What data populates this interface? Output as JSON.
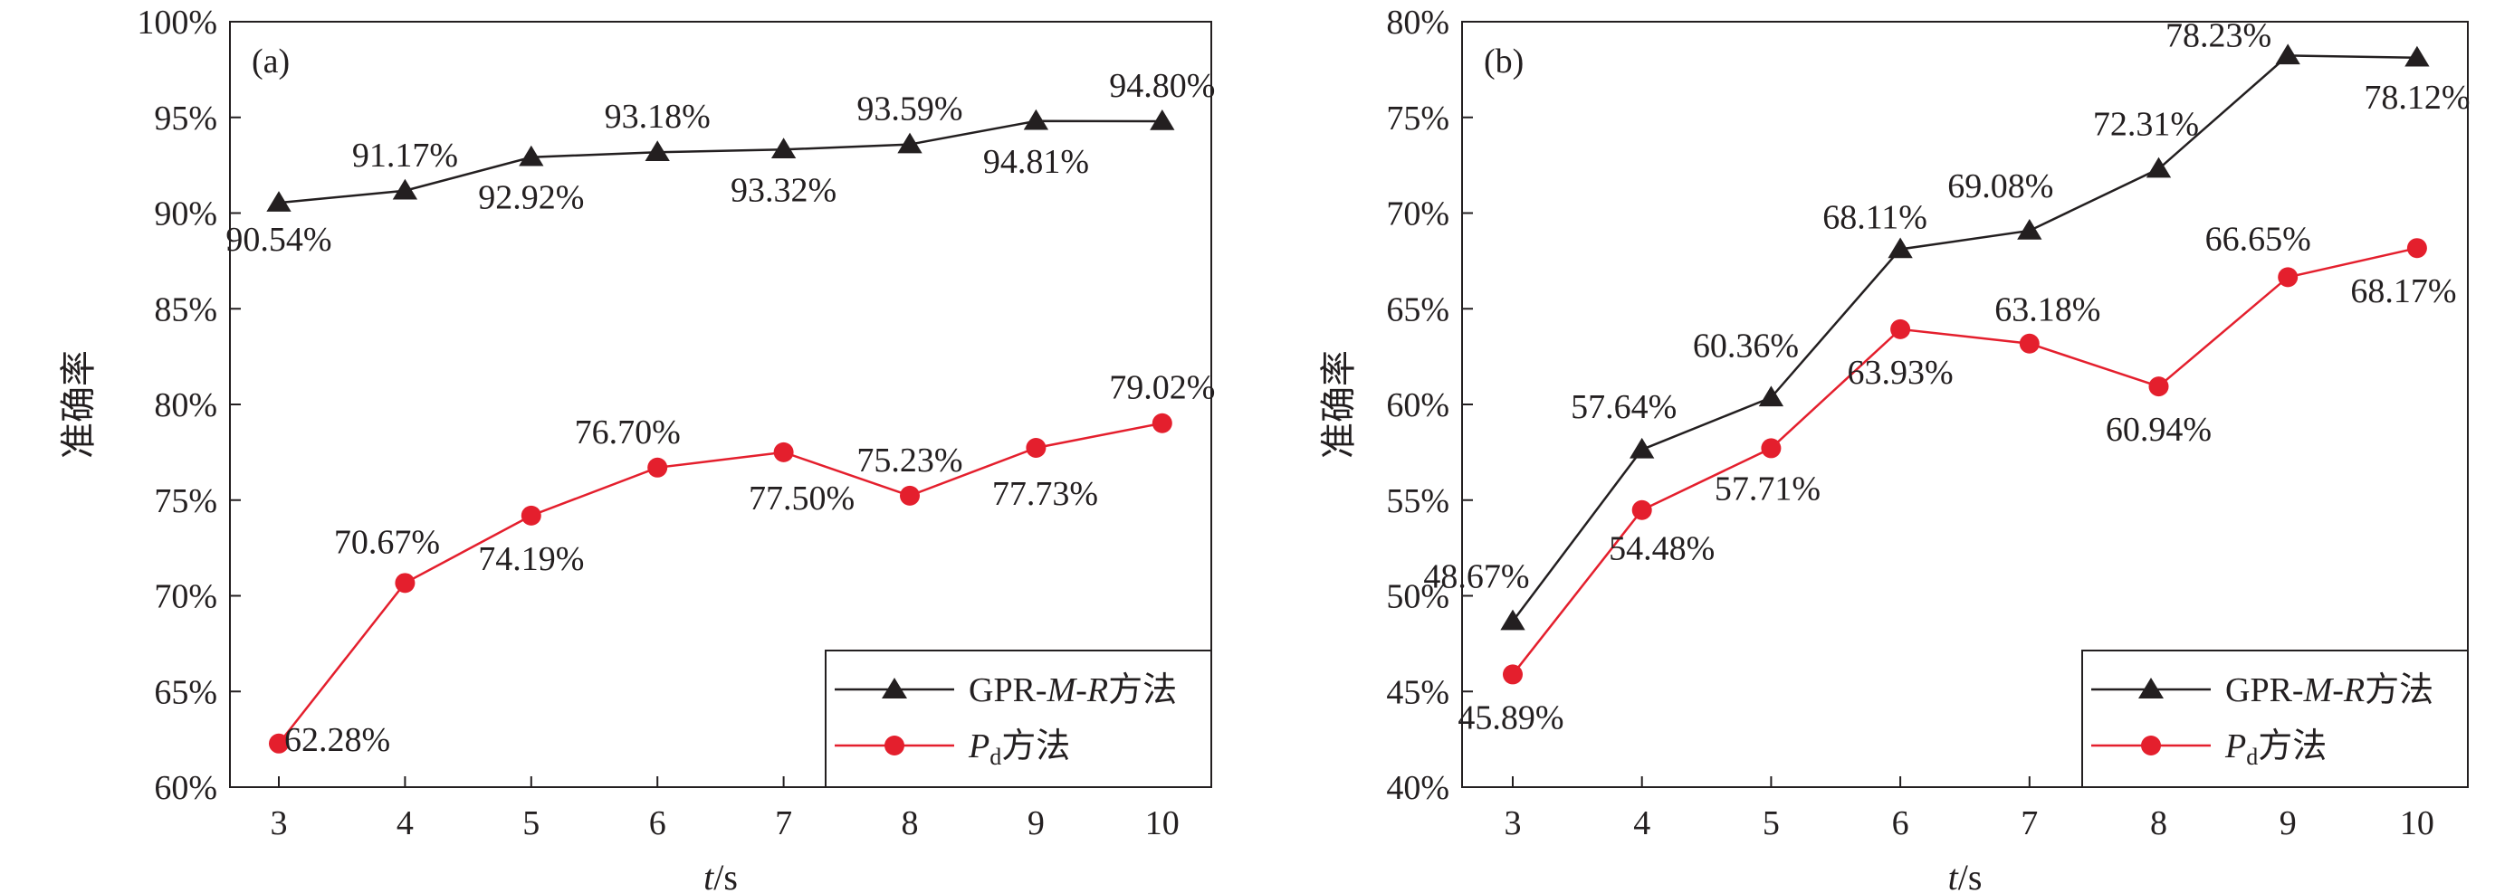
{
  "chart_data": [
    {
      "type": "line",
      "panel_label": "(a)",
      "xlabel_italic": "t",
      "xlabel_unit": "/s",
      "ylabel": "准确率",
      "categories": [
        3,
        4,
        5,
        6,
        7,
        8,
        9,
        10
      ],
      "ylim": [
        60,
        100
      ],
      "yticks": [
        "60%",
        "65%",
        "70%",
        "75%",
        "80%",
        "85%",
        "90%",
        "95%",
        "100%"
      ],
      "grid": false,
      "legend_position": "bottom-right",
      "series": [
        {
          "name": "GPR-M-R方法",
          "marker": "triangle",
          "color": "#231f20",
          "values": [
            90.54,
            91.17,
            92.92,
            93.18,
            93.32,
            93.59,
            94.81,
            94.8
          ],
          "labels": [
            "90.54%",
            "91.17%",
            "92.92%",
            "93.18%",
            "93.32%",
            "93.59%",
            "94.81%",
            "94.80%"
          ]
        },
        {
          "name": "Pd方法",
          "marker": "circle",
          "color": "#e41f2d",
          "values": [
            62.28,
            70.67,
            74.19,
            76.7,
            77.5,
            75.23,
            77.73,
            79.02
          ],
          "labels": [
            "62.28%",
            "70.67%",
            "74.19%",
            "76.70%",
            "77.50%",
            "75.23%",
            "77.73%",
            "79.02%"
          ]
        }
      ]
    },
    {
      "type": "line",
      "panel_label": "(b)",
      "xlabel_italic": "t",
      "xlabel_unit": "/s",
      "ylabel": "准确率",
      "categories": [
        3,
        4,
        5,
        6,
        7,
        8,
        9,
        10
      ],
      "ylim": [
        40,
        80
      ],
      "yticks": [
        "40%",
        "45%",
        "50%",
        "55%",
        "60%",
        "65%",
        "70%",
        "75%",
        "80%"
      ],
      "grid": false,
      "legend_position": "bottom-right",
      "series": [
        {
          "name": "GPR-M-R方法",
          "marker": "triangle",
          "color": "#231f20",
          "values": [
            48.67,
            57.64,
            60.36,
            68.11,
            69.08,
            72.31,
            78.23,
            78.12
          ],
          "labels": [
            "48.67%",
            "57.64%",
            "60.36%",
            "68.11%",
            "69.08%",
            "72.31%",
            "78.23%",
            "78.12%"
          ]
        },
        {
          "name": "Pd方法",
          "marker": "circle",
          "color": "#e41f2d",
          "values": [
            45.89,
            54.48,
            57.71,
            63.93,
            63.18,
            60.94,
            66.65,
            68.17
          ],
          "labels": [
            "45.89%",
            "54.48%",
            "57.71%",
            "63.93%",
            "63.18%",
            "60.94%",
            "66.65%",
            "68.17%"
          ]
        }
      ]
    }
  ],
  "legend": {
    "gpr_prefix": "GPR-",
    "gpr_m": "M",
    "gpr_dash": "-",
    "gpr_r": "R",
    "gpr_suffix": "方法",
    "pd_letter": "P",
    "pd_sub": "d",
    "pd_suffix": "方法"
  }
}
